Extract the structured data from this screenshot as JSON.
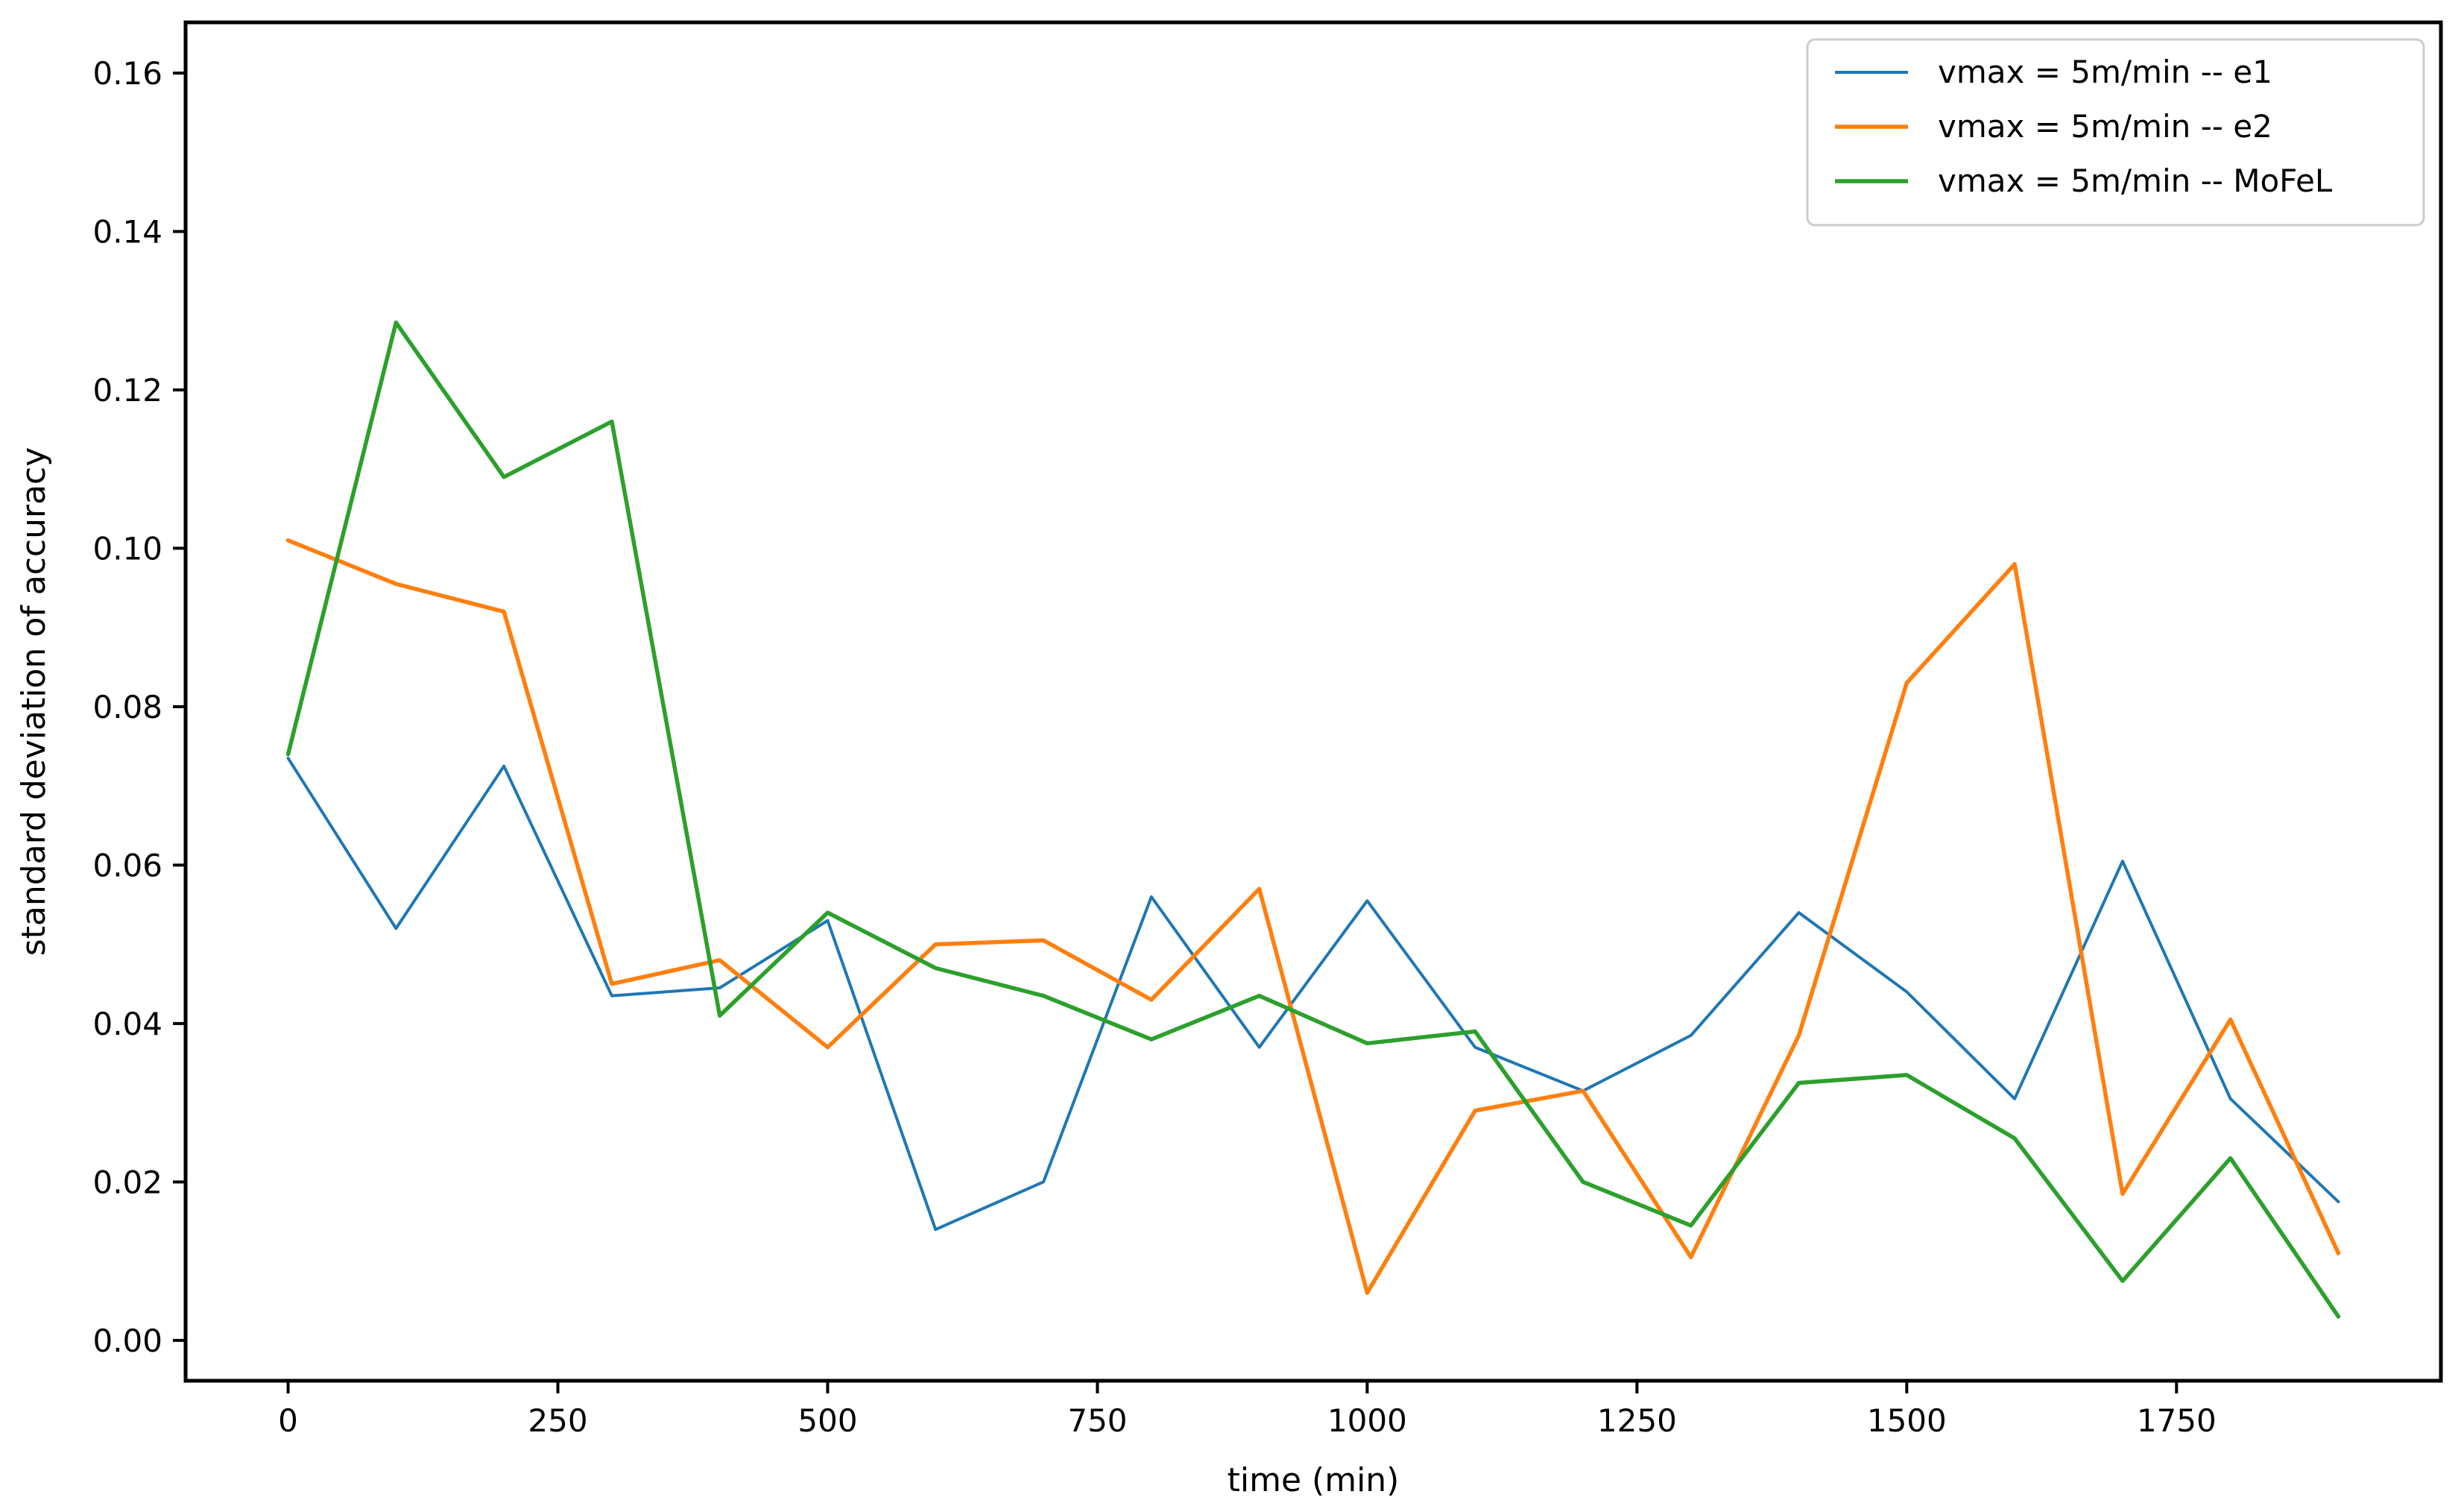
{
  "chart_data": {
    "type": "line",
    "title": "",
    "xlabel": "time (min)",
    "ylabel": "standard deviation of accuracy",
    "x": [
      0,
      100,
      200,
      300,
      400,
      500,
      600,
      700,
      800,
      900,
      1000,
      1100,
      1200,
      1300,
      1400,
      1500,
      1600,
      1700,
      1800,
      1900
    ],
    "series": [
      {
        "name": "vmax = 5m/min -- e1",
        "color": "#1f77b4",
        "linewidth": 4,
        "values": [
          0.0735,
          0.052,
          0.0725,
          0.0435,
          0.0445,
          0.053,
          0.014,
          0.02,
          0.056,
          0.037,
          0.0555,
          0.037,
          0.0315,
          0.0385,
          0.054,
          0.044,
          0.0305,
          0.0605,
          0.0305,
          0.0175
        ]
      },
      {
        "name": "vmax = 5m/min -- e2",
        "color": "#ff7f0e",
        "linewidth": 5.5,
        "values": [
          0.101,
          0.0955,
          0.092,
          0.045,
          0.048,
          0.037,
          0.05,
          0.0505,
          0.043,
          0.057,
          0.006,
          0.029,
          0.0315,
          0.0105,
          0.0385,
          0.083,
          0.098,
          0.0185,
          0.0405,
          0.011
        ]
      },
      {
        "name": "vmax = 5m/min -- MoFeL",
        "color": "#2ca02c",
        "linewidth": 5.5,
        "values": [
          0.074,
          0.1285,
          0.109,
          0.116,
          0.041,
          0.054,
          0.047,
          0.0435,
          0.038,
          0.0435,
          0.0375,
          0.039,
          0.02,
          0.0145,
          0.0325,
          0.0335,
          0.0255,
          0.0075,
          0.023,
          0.003
        ]
      }
    ],
    "xlim": [
      -95,
      1995
    ],
    "ylim": [
      -0.0051,
      0.1664
    ],
    "xtick_values": [
      0,
      250,
      500,
      750,
      1000,
      1250,
      1500,
      1750
    ],
    "xtick_labels": [
      "0",
      "250",
      "500",
      "750",
      "1000",
      "1250",
      "1500",
      "1750"
    ],
    "ytick_values": [
      0.0,
      0.02,
      0.04,
      0.06,
      0.08,
      0.1,
      0.12,
      0.14,
      0.16
    ],
    "ytick_labels": [
      "0.00",
      "0.02",
      "0.04",
      "0.06",
      "0.08",
      "0.10",
      "0.12",
      "0.14",
      "0.16"
    ],
    "grid": false,
    "legend_position": "upper right",
    "background": "#ffffff",
    "axis_color": "#000000",
    "legend_border_color": "#cccccc"
  }
}
